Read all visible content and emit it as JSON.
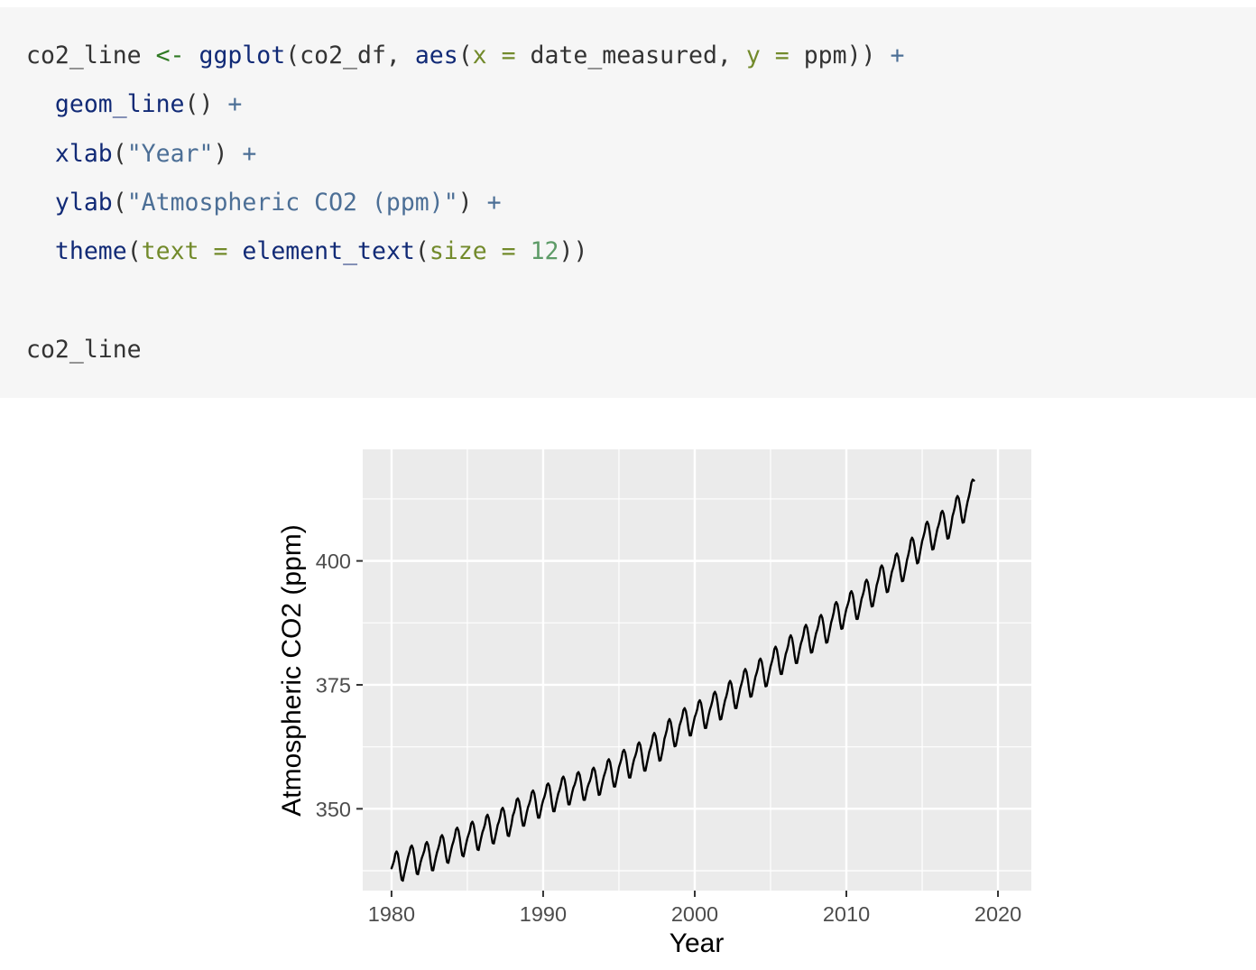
{
  "code": {
    "lines": [
      [
        {
          "t": "co2_line ",
          "c": "plain"
        },
        {
          "t": "<-",
          "c": "assign"
        },
        {
          "t": " ",
          "c": "plain"
        },
        {
          "t": "ggplot",
          "c": "fn"
        },
        {
          "t": "(co2_df, ",
          "c": "plain"
        },
        {
          "t": "aes",
          "c": "fn"
        },
        {
          "t": "(",
          "c": "plain"
        },
        {
          "t": "x",
          "c": "arg"
        },
        {
          "t": " ",
          "c": "plain"
        },
        {
          "t": "=",
          "c": "arg"
        },
        {
          "t": " date_measured, ",
          "c": "plain"
        },
        {
          "t": "y",
          "c": "arg"
        },
        {
          "t": " ",
          "c": "plain"
        },
        {
          "t": "=",
          "c": "arg"
        },
        {
          "t": " ppm)) ",
          "c": "plain"
        },
        {
          "t": "+",
          "c": "op"
        }
      ],
      [
        {
          "t": "  ",
          "c": "plain"
        },
        {
          "t": "geom_line",
          "c": "fn"
        },
        {
          "t": "() ",
          "c": "plain"
        },
        {
          "t": "+",
          "c": "op"
        }
      ],
      [
        {
          "t": "  ",
          "c": "plain"
        },
        {
          "t": "xlab",
          "c": "fn"
        },
        {
          "t": "(",
          "c": "plain"
        },
        {
          "t": "\"Year\"",
          "c": "str"
        },
        {
          "t": ") ",
          "c": "plain"
        },
        {
          "t": "+",
          "c": "op"
        }
      ],
      [
        {
          "t": "  ",
          "c": "plain"
        },
        {
          "t": "ylab",
          "c": "fn"
        },
        {
          "t": "(",
          "c": "plain"
        },
        {
          "t": "\"Atmospheric CO2 (ppm)\"",
          "c": "str"
        },
        {
          "t": ") ",
          "c": "plain"
        },
        {
          "t": "+",
          "c": "op"
        }
      ],
      [
        {
          "t": "  ",
          "c": "plain"
        },
        {
          "t": "theme",
          "c": "fn"
        },
        {
          "t": "(",
          "c": "plain"
        },
        {
          "t": "text",
          "c": "arg"
        },
        {
          "t": " ",
          "c": "plain"
        },
        {
          "t": "=",
          "c": "arg"
        },
        {
          "t": " ",
          "c": "plain"
        },
        {
          "t": "element_text",
          "c": "fn"
        },
        {
          "t": "(",
          "c": "plain"
        },
        {
          "t": "size",
          "c": "arg"
        },
        {
          "t": " ",
          "c": "plain"
        },
        {
          "t": "=",
          "c": "arg"
        },
        {
          "t": " ",
          "c": "plain"
        },
        {
          "t": "12",
          "c": "num"
        },
        {
          "t": "))",
          "c": "plain"
        }
      ],
      [],
      [
        {
          "t": "co2_line",
          "c": "plain"
        }
      ]
    ]
  },
  "colors": {
    "code_bg": "#f6f6f6",
    "panel_bg": "#ebebeb",
    "grid": "#ffffff",
    "line": "#000000",
    "tick_text": "#4d4d4d",
    "axis_title": "#000000"
  },
  "chart_data": {
    "type": "line",
    "title": "",
    "xlabel": "Year",
    "ylabel": "Atmospheric CO2 (ppm)",
    "xlim": [
      1978.1,
      2022.2
    ],
    "ylim": [
      333.5,
      422.5
    ],
    "x_ticks": [
      1980,
      1990,
      2000,
      2010,
      2020
    ],
    "y_ticks": [
      350,
      375,
      400
    ],
    "x_tick_labels": [
      "1980",
      "1990",
      "2000",
      "2010",
      "2020"
    ],
    "y_tick_labels": [
      "350",
      "375",
      "400"
    ],
    "grid": true,
    "series": [
      {
        "x_start": 1980.0,
        "x_step_months": 1,
        "values": [
          338.0,
          338.7,
          339.5,
          340.9,
          341.4,
          340.9,
          339.3,
          337.3,
          335.7,
          335.5,
          336.8,
          337.9,
          339.1,
          340.2,
          341.1,
          342.2,
          342.6,
          342.0,
          340.5,
          338.5,
          336.9,
          336.8,
          338.0,
          339.2,
          340.1,
          340.8,
          341.6,
          342.9,
          343.3,
          342.7,
          341.2,
          339.2,
          337.6,
          337.6,
          338.9,
          340.1,
          341.2,
          342.0,
          343.0,
          344.3,
          344.7,
          344.1,
          342.6,
          340.6,
          339.2,
          339.1,
          340.3,
          341.5,
          342.6,
          343.4,
          344.4,
          345.8,
          346.2,
          345.6,
          344.1,
          342.1,
          340.6,
          340.4,
          341.6,
          342.9,
          344.0,
          344.8,
          345.6,
          347.0,
          347.4,
          346.8,
          345.3,
          343.3,
          341.8,
          341.7,
          343.0,
          344.2,
          345.3,
          346.0,
          346.9,
          348.4,
          348.8,
          348.1,
          346.6,
          344.6,
          343.1,
          343.0,
          344.2,
          345.4,
          346.7,
          347.4,
          348.4,
          349.8,
          350.2,
          349.6,
          348.1,
          346.1,
          344.6,
          344.5,
          345.8,
          347.0,
          348.6,
          349.3,
          350.3,
          351.8,
          352.1,
          351.5,
          350.0,
          348.0,
          346.6,
          346.6,
          347.9,
          349.2,
          350.3,
          351.0,
          351.9,
          353.3,
          353.7,
          353.1,
          351.6,
          349.6,
          348.2,
          348.2,
          349.4,
          350.7,
          351.7,
          352.4,
          353.4,
          354.8,
          355.1,
          354.6,
          353.0,
          351.0,
          349.5,
          349.5,
          350.8,
          352.0,
          353.1,
          353.8,
          354.8,
          356.1,
          356.5,
          355.9,
          354.4,
          352.4,
          350.9,
          350.9,
          352.1,
          353.3,
          354.3,
          354.9,
          355.8,
          357.1,
          357.4,
          356.8,
          355.3,
          353.3,
          351.8,
          351.8,
          353.0,
          354.2,
          355.0,
          355.6,
          356.5,
          357.9,
          358.3,
          357.7,
          356.2,
          354.3,
          352.8,
          352.9,
          354.2,
          355.4,
          356.5,
          357.3,
          358.2,
          359.6,
          360.0,
          359.4,
          357.9,
          355.9,
          354.5,
          354.5,
          355.8,
          357.1,
          358.4,
          359.2,
          360.1,
          361.5,
          361.9,
          361.3,
          359.8,
          357.8,
          356.3,
          356.3,
          357.6,
          358.9,
          360.0,
          360.7,
          361.6,
          363.0,
          363.4,
          362.8,
          361.2,
          359.2,
          357.7,
          357.7,
          359.0,
          360.2,
          361.5,
          362.3,
          363.3,
          364.8,
          365.3,
          364.7,
          363.2,
          361.2,
          359.7,
          359.8,
          361.1,
          362.4,
          364.1,
          365.0,
          366.0,
          367.6,
          368.1,
          367.5,
          366.0,
          364.0,
          362.6,
          362.7,
          364.0,
          365.4,
          366.8,
          367.6,
          368.5,
          369.9,
          370.3,
          369.7,
          368.2,
          366.2,
          364.8,
          364.8,
          366.1,
          367.3,
          368.5,
          369.2,
          370.1,
          371.5,
          371.9,
          371.3,
          369.8,
          367.8,
          366.3,
          366.3,
          367.6,
          368.9,
          370.0,
          370.8,
          371.8,
          373.2,
          373.6,
          373.0,
          371.5,
          369.5,
          368.0,
          368.1,
          369.4,
          370.7,
          371.9,
          372.7,
          373.8,
          375.3,
          375.8,
          375.2,
          373.7,
          371.7,
          370.3,
          370.3,
          371.7,
          373.0,
          374.3,
          375.2,
          376.2,
          377.7,
          378.2,
          377.6,
          376.1,
          374.1,
          372.6,
          372.7,
          374.0,
          375.3,
          376.6,
          377.4,
          378.4,
          379.9,
          380.3,
          379.7,
          378.2,
          376.2,
          374.7,
          374.8,
          376.1,
          377.4,
          378.7,
          379.6,
          380.6,
          382.2,
          382.7,
          382.1,
          380.6,
          378.6,
          377.2,
          377.2,
          378.6,
          379.9,
          381.2,
          382.0,
          383.0,
          384.5,
          385.0,
          384.4,
          382.9,
          380.9,
          379.4,
          379.4,
          380.8,
          382.1,
          383.3,
          384.1,
          385.1,
          386.6,
          387.1,
          386.5,
          385.0,
          383.0,
          381.5,
          381.6,
          382.9,
          384.2,
          385.4,
          386.2,
          387.2,
          388.7,
          389.1,
          388.5,
          387.0,
          385.0,
          383.5,
          383.6,
          384.9,
          386.2,
          387.6,
          388.5,
          389.6,
          391.2,
          391.7,
          391.2,
          389.7,
          387.7,
          386.3,
          386.4,
          387.8,
          389.1,
          390.3,
          391.1,
          392.0,
          393.5,
          393.9,
          393.3,
          391.8,
          389.8,
          388.3,
          388.3,
          389.6,
          390.9,
          392.3,
          393.1,
          394.1,
          395.7,
          396.2,
          395.7,
          394.2,
          392.2,
          390.8,
          390.9,
          392.3,
          393.6,
          395.1,
          396.0,
          397.1,
          398.6,
          399.1,
          398.6,
          397.1,
          395.1,
          393.7,
          393.8,
          395.1,
          396.5,
          397.8,
          398.6,
          399.6,
          401.1,
          401.5,
          400.9,
          399.4,
          397.4,
          395.9,
          396.0,
          397.4,
          398.7,
          400.2,
          401.2,
          402.4,
          404.1,
          404.7,
          404.2,
          402.8,
          400.9,
          399.5,
          399.7,
          401.2,
          402.6,
          404.0,
          404.9,
          405.9,
          407.4,
          407.9,
          407.3,
          405.8,
          403.8,
          402.3,
          402.4,
          403.8,
          405.1,
          406.4,
          407.2,
          408.2,
          409.7,
          410.1,
          409.5,
          408.0,
          406.0,
          404.5,
          404.6,
          405.9,
          407.3,
          409.0,
          409.9,
          411.0,
          412.6,
          413.1,
          412.6,
          411.1,
          409.1,
          407.7,
          407.8,
          409.3,
          410.7,
          412.0,
          413.0,
          414.2,
          415.8,
          416.4,
          416.2
        ]
      }
    ]
  }
}
